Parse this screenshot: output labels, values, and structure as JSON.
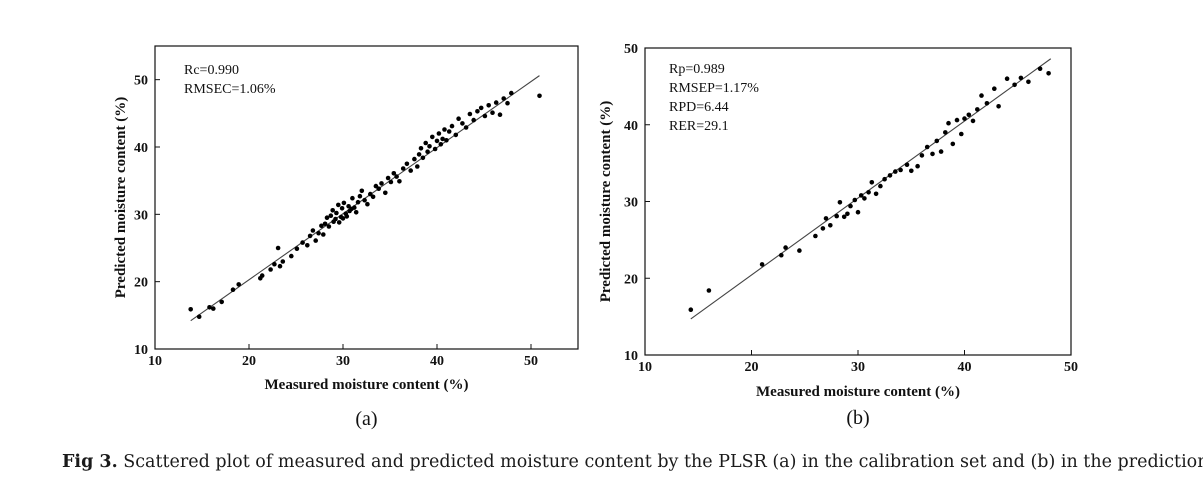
{
  "chart_data": [
    {
      "type": "scatter",
      "panel_label": "(a)",
      "xlabel": "Measured moisture content (%)",
      "ylabel": "Predicted moisture content (%)",
      "xlim": [
        10,
        55
      ],
      "ylim": [
        10,
        55
      ],
      "xticks": [
        10,
        20,
        30,
        40,
        50
      ],
      "yticks": [
        10,
        20,
        30,
        40,
        50
      ],
      "annotations": [
        "Rc=0.990",
        "RMSEC=1.06%"
      ],
      "fit_line": {
        "x": [
          13.8,
          50.9
        ],
        "y": [
          14.2,
          50.6
        ]
      },
      "x": [
        13.8,
        14.7,
        15.8,
        16.2,
        17.1,
        18.3,
        18.9,
        21.2,
        21.4,
        22.3,
        22.7,
        23.1,
        23.3,
        23.6,
        24.5,
        25.1,
        25.7,
        26.2,
        26.5,
        26.8,
        27.1,
        27.4,
        27.7,
        27.9,
        28.1,
        28.3,
        28.5,
        28.7,
        28.9,
        29.0,
        29.2,
        29.3,
        29.5,
        29.6,
        29.8,
        29.9,
        30.0,
        30.1,
        30.3,
        30.4,
        30.6,
        30.7,
        30.9,
        31.0,
        31.2,
        31.4,
        31.6,
        31.8,
        32.0,
        32.3,
        32.6,
        32.9,
        33.2,
        33.5,
        33.8,
        34.1,
        34.5,
        34.8,
        35.1,
        35.4,
        35.7,
        36.0,
        36.4,
        36.8,
        37.2,
        37.6,
        37.9,
        38.1,
        38.3,
        38.5,
        38.8,
        39.0,
        39.2,
        39.5,
        39.8,
        40.0,
        40.2,
        40.4,
        40.6,
        40.8,
        41.0,
        41.3,
        41.6,
        42.0,
        42.3,
        42.7,
        43.1,
        43.5,
        43.9,
        44.3,
        44.7,
        45.1,
        45.5,
        45.9,
        46.3,
        46.7,
        47.1,
        47.5,
        47.9,
        50.9
      ],
      "y": [
        15.9,
        14.8,
        16.2,
        16.0,
        17.0,
        18.8,
        19.6,
        20.5,
        20.9,
        21.8,
        22.6,
        25.0,
        22.3,
        23.0,
        23.8,
        24.9,
        25.8,
        25.4,
        26.8,
        27.6,
        26.1,
        27.2,
        28.3,
        27.0,
        28.6,
        29.5,
        28.2,
        29.8,
        30.6,
        28.9,
        29.3,
        30.2,
        31.4,
        28.8,
        29.6,
        30.9,
        29.4,
        31.7,
        30.1,
        29.7,
        31.2,
        30.5,
        30.8,
        32.4,
        31.0,
        30.3,
        31.8,
        32.7,
        33.5,
        32.1,
        31.5,
        33.0,
        32.6,
        34.2,
        33.8,
        34.6,
        33.2,
        35.4,
        34.8,
        36.1,
        35.6,
        34.9,
        36.8,
        37.5,
        36.5,
        38.2,
        37.1,
        38.9,
        39.8,
        38.4,
        40.6,
        39.3,
        40.1,
        41.5,
        39.7,
        40.9,
        42.0,
        40.4,
        41.2,
        42.6,
        41.0,
        42.3,
        43.1,
        41.8,
        44.2,
        43.5,
        42.9,
        44.9,
        44.0,
        45.3,
        45.8,
        44.6,
        46.2,
        45.1,
        46.6,
        44.8,
        47.2,
        46.5,
        48.0,
        47.6
      ]
    },
    {
      "type": "scatter",
      "panel_label": "(b)",
      "xlabel": "Measured moisture content (%)",
      "ylabel": "Predicted moisture content (%)",
      "xlim": [
        10,
        50
      ],
      "ylim": [
        10,
        50
      ],
      "xticks": [
        10,
        20,
        30,
        40,
        50
      ],
      "yticks": [
        10,
        20,
        30,
        40,
        50
      ],
      "annotations": [
        "Rp=0.989",
        "RMSEP=1.17%",
        "RPD=6.44",
        "RER=29.1"
      ],
      "fit_line": {
        "x": [
          14.3,
          48.1
        ],
        "y": [
          14.7,
          48.6
        ]
      },
      "x": [
        14.3,
        16.0,
        21.0,
        22.8,
        23.2,
        24.5,
        26.0,
        26.7,
        27.0,
        27.4,
        28.0,
        28.3,
        28.7,
        29.0,
        29.3,
        29.7,
        30.0,
        30.3,
        30.6,
        31.0,
        31.3,
        31.7,
        32.1,
        32.5,
        33.0,
        33.5,
        34.0,
        34.6,
        35.0,
        35.6,
        36.0,
        36.5,
        37.0,
        37.4,
        37.8,
        38.2,
        38.5,
        38.9,
        39.3,
        39.7,
        40.0,
        40.4,
        40.8,
        41.2,
        41.6,
        42.1,
        42.8,
        43.2,
        44.0,
        44.7,
        45.3,
        46.0,
        47.1,
        47.9
      ],
      "y": [
        15.9,
        18.4,
        21.8,
        23.0,
        24.0,
        23.6,
        25.5,
        26.5,
        27.8,
        26.9,
        28.1,
        29.9,
        28.0,
        28.4,
        29.4,
        30.2,
        28.6,
        30.8,
        30.4,
        31.2,
        32.5,
        31.0,
        32.0,
        32.9,
        33.4,
        33.9,
        34.1,
        34.8,
        34.0,
        34.6,
        36.0,
        37.1,
        36.2,
        37.9,
        36.5,
        39.0,
        40.2,
        37.5,
        40.6,
        38.8,
        40.8,
        41.3,
        40.5,
        42.0,
        43.8,
        42.8,
        44.7,
        42.4,
        46.0,
        45.2,
        46.1,
        45.6,
        47.3,
        46.7
      ]
    }
  ],
  "caption": {
    "label": "Fig 3.",
    "text": "Scattered plot of measured and predicted moisture content by the PLSR (a) in the calibration set and (b) in the prediction set."
  }
}
